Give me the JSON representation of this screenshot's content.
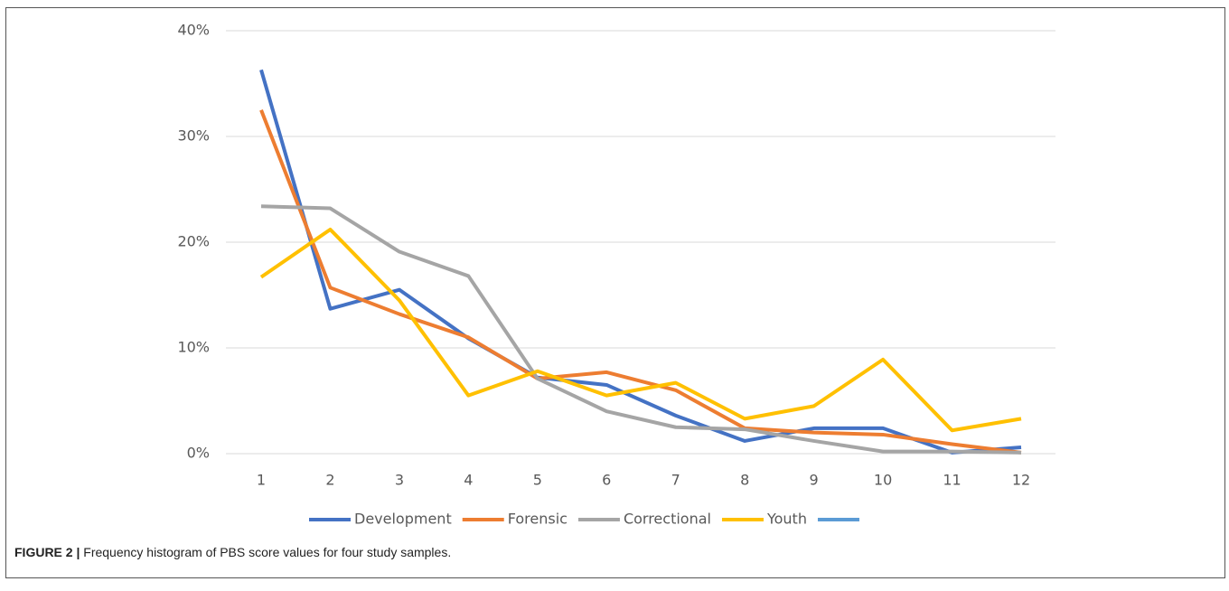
{
  "chart_data": {
    "type": "line",
    "categories": [
      "1",
      "2",
      "3",
      "4",
      "5",
      "6",
      "7",
      "8",
      "9",
      "10",
      "11",
      "12"
    ],
    "series": [
      {
        "name": "Development",
        "color": "#4472c4",
        "values": [
          36.3,
          13.7,
          15.5,
          10.9,
          7.2,
          6.5,
          3.6,
          1.2,
          2.4,
          2.4,
          0.1,
          0.6
        ]
      },
      {
        "name": "Forensic",
        "color": "#ed7d31",
        "values": [
          32.5,
          15.7,
          13.2,
          11.0,
          7.1,
          7.7,
          6.0,
          2.4,
          2.0,
          1.8,
          0.9,
          0.1
        ]
      },
      {
        "name": "Correctional",
        "color": "#a5a5a5",
        "values": [
          23.4,
          23.2,
          19.1,
          16.8,
          7.1,
          4.0,
          2.5,
          2.3,
          1.2,
          0.2,
          0.2,
          0.1
        ]
      },
      {
        "name": "Youth",
        "color": "#ffc000",
        "values": [
          16.7,
          21.2,
          14.5,
          5.5,
          7.8,
          5.5,
          6.7,
          3.3,
          4.5,
          8.9,
          2.2,
          3.3
        ]
      },
      {
        "name": null,
        "color": "#5b9bd5",
        "values": [
          null,
          null,
          null,
          null,
          null,
          null,
          null,
          null,
          null,
          null,
          null,
          null
        ]
      }
    ],
    "ylim": [
      0,
      40
    ],
    "yticks": [
      {
        "value": 0,
        "label": "0%"
      },
      {
        "value": 10,
        "label": "10%"
      },
      {
        "value": 20,
        "label": "20%"
      },
      {
        "value": 30,
        "label": "30%"
      },
      {
        "value": 40,
        "label": "40%"
      }
    ],
    "grid": true,
    "legend": "bottom"
  },
  "caption": {
    "label": "FIGURE 2 |",
    "text": "Frequency histogram of PBS score values for four study samples."
  }
}
